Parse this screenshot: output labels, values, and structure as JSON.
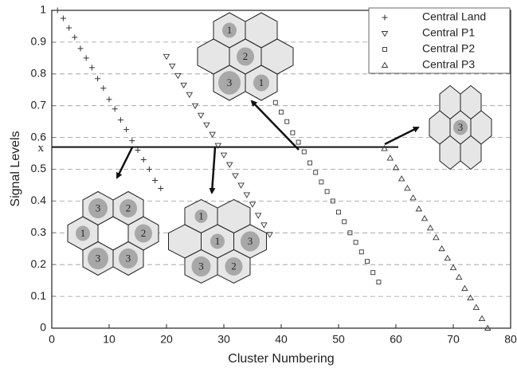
{
  "chart_data": {
    "type": "scatter",
    "xlabel": "Cluster Numbering",
    "ylabel": "Signal Levels",
    "xlim": [
      0,
      80
    ],
    "ylim": [
      0,
      1
    ],
    "xticks": [
      0,
      10,
      20,
      30,
      40,
      50,
      60,
      70,
      80
    ],
    "yticks": [
      0,
      0.1,
      0.2,
      0.3,
      0.4,
      0.5,
      0.6,
      0.7,
      0.8,
      0.9,
      1
    ],
    "grid": true,
    "legend": "upper right",
    "threshold": {
      "label": "x",
      "value": 0.57
    },
    "series": [
      {
        "name": "Central Land",
        "marker": "plus",
        "color": "#333333",
        "x": [
          1,
          2,
          3,
          4,
          5,
          6,
          7,
          8,
          9,
          10,
          11,
          12,
          13,
          14,
          15,
          16,
          17,
          18,
          19
        ],
        "values": [
          1.0,
          0.975,
          0.945,
          0.915,
          0.88,
          0.85,
          0.82,
          0.785,
          0.755,
          0.72,
          0.69,
          0.655,
          0.625,
          0.59,
          0.56,
          0.53,
          0.5,
          0.465,
          0.44
        ]
      },
      {
        "name": "Central P1",
        "marker": "tri-down",
        "color": "#333333",
        "x": [
          20,
          21,
          22,
          23,
          24,
          25,
          26,
          27,
          28,
          29,
          30,
          31,
          32,
          33,
          34,
          35,
          36,
          37,
          38
        ],
        "values": [
          0.855,
          0.825,
          0.795,
          0.765,
          0.735,
          0.7,
          0.67,
          0.64,
          0.61,
          0.575,
          0.545,
          0.515,
          0.48,
          0.45,
          0.42,
          0.39,
          0.355,
          0.325,
          0.295
        ]
      },
      {
        "name": "Central P2",
        "marker": "square",
        "color": "#333333",
        "x": [
          39,
          40,
          41,
          42,
          43,
          44,
          45,
          46,
          47,
          48,
          49,
          50,
          51,
          52,
          53,
          54,
          55,
          56,
          57
        ],
        "values": [
          0.71,
          0.68,
          0.65,
          0.615,
          0.585,
          0.555,
          0.52,
          0.49,
          0.46,
          0.43,
          0.4,
          0.365,
          0.335,
          0.3,
          0.27,
          0.24,
          0.21,
          0.175,
          0.145
        ]
      },
      {
        "name": "Central P3",
        "marker": "tri-up",
        "color": "#333333",
        "x": [
          58,
          59,
          60,
          61,
          62,
          63,
          64,
          65,
          66,
          67,
          68,
          69,
          70,
          71,
          72,
          73,
          74,
          75,
          76
        ],
        "values": [
          0.565,
          0.535,
          0.505,
          0.47,
          0.44,
          0.41,
          0.375,
          0.345,
          0.315,
          0.285,
          0.25,
          0.22,
          0.19,
          0.16,
          0.125,
          0.095,
          0.065,
          0.03,
          0.0
        ]
      }
    ],
    "diagrams": [
      {
        "labels": [
          "1",
          null,
          null,
          "2",
          null,
          "3",
          "1"
        ]
      },
      {
        "labels": [
          null,
          null,
          null,
          "3",
          null,
          null,
          null
        ]
      },
      {
        "labels": [
          "3",
          "2",
          "1",
          null,
          "2",
          "3",
          "3"
        ]
      },
      {
        "labels": [
          "1",
          null,
          null,
          "1",
          "3",
          "3",
          "2"
        ]
      }
    ]
  }
}
